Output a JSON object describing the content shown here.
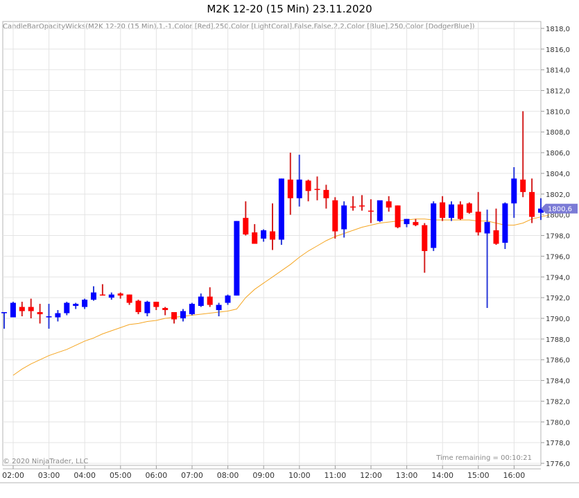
{
  "chart_data": {
    "type": "candlestick",
    "title": "M2K 12-20 (15 Min)  23.11.2020",
    "indicator_label": "CandleBarOpacityWicks(M2K 12-20 (15 Min),1,-1,Color [Red],250,Color [LightCoral],False,False,2,2,Color [Blue],250,Color [DodgerBlue])",
    "copyright": "© 2020 NinjaTrader, LLC",
    "time_remaining": "Time remaining = 00:10:21",
    "current_price_label": "1800,6",
    "x_tick_labels": [
      "02:00",
      "03:00",
      "04:00",
      "05:00",
      "06:00",
      "07:00",
      "08:00",
      "09:00",
      "10:00",
      "11:00",
      "12:00",
      "13:00",
      "14:00",
      "15:00",
      "16:00"
    ],
    "y_tick_labels": [
      "1776,0",
      "1778,0",
      "1780,0",
      "1782,0",
      "1784,0",
      "1786,0",
      "1788,0",
      "1790,0",
      "1792,0",
      "1794,0",
      "1796,0",
      "1798,0",
      "1800,0",
      "1802,0",
      "1804,0",
      "1806,0",
      "1808,0",
      "1810,0",
      "1812,0",
      "1814,0",
      "1816,0",
      "1818,0"
    ],
    "ylim": [
      1775.8,
      1818.3
    ],
    "grid": true,
    "colors": {
      "up": "#0000ff",
      "down": "#ff0000",
      "up_wick": "#1e90ff",
      "down_wick": "#f08080",
      "ma": "#f5a623",
      "price_tag": "#7b7bd6"
    },
    "candles": [
      {
        "o": 1790.6,
        "h": 1790.6,
        "l": 1789.0,
        "c": 1790.6
      },
      {
        "o": 1790.1,
        "h": 1791.6,
        "l": 1790.1,
        "c": 1791.5
      },
      {
        "o": 1791.1,
        "h": 1791.6,
        "l": 1790.2,
        "c": 1790.7
      },
      {
        "o": 1791.1,
        "h": 1791.9,
        "l": 1790.0,
        "c": 1790.7
      },
      {
        "o": 1790.6,
        "h": 1791.4,
        "l": 1789.5,
        "c": 1790.4
      },
      {
        "o": 1790.2,
        "h": 1791.4,
        "l": 1789.0,
        "c": 1790.2
      },
      {
        "o": 1790.1,
        "h": 1790.8,
        "l": 1789.7,
        "c": 1790.5
      },
      {
        "o": 1790.5,
        "h": 1791.6,
        "l": 1790.3,
        "c": 1791.5
      },
      {
        "o": 1791.2,
        "h": 1791.5,
        "l": 1790.9,
        "c": 1791.4
      },
      {
        "o": 1791.1,
        "h": 1791.9,
        "l": 1790.9,
        "c": 1791.8
      },
      {
        "o": 1791.8,
        "h": 1793.1,
        "l": 1791.7,
        "c": 1792.5
      },
      {
        "o": 1792.3,
        "h": 1793.3,
        "l": 1792.2,
        "c": 1792.2
      },
      {
        "o": 1792.0,
        "h": 1792.5,
        "l": 1791.8,
        "c": 1792.3
      },
      {
        "o": 1792.4,
        "h": 1792.5,
        "l": 1791.9,
        "c": 1792.2
      },
      {
        "o": 1792.3,
        "h": 1792.3,
        "l": 1791.3,
        "c": 1791.5
      },
      {
        "o": 1791.7,
        "h": 1791.8,
        "l": 1790.4,
        "c": 1790.6
      },
      {
        "o": 1790.5,
        "h": 1791.7,
        "l": 1790.2,
        "c": 1791.6
      },
      {
        "o": 1791.6,
        "h": 1791.6,
        "l": 1790.8,
        "c": 1791.1
      },
      {
        "o": 1791.0,
        "h": 1791.1,
        "l": 1790.3,
        "c": 1790.8
      },
      {
        "o": 1790.6,
        "h": 1790.6,
        "l": 1789.5,
        "c": 1789.9
      },
      {
        "o": 1790.0,
        "h": 1790.9,
        "l": 1789.7,
        "c": 1790.7
      },
      {
        "o": 1790.4,
        "h": 1791.5,
        "l": 1790.3,
        "c": 1791.4
      },
      {
        "o": 1791.2,
        "h": 1792.4,
        "l": 1791.1,
        "c": 1792.1
      },
      {
        "o": 1792.1,
        "h": 1793.0,
        "l": 1791.1,
        "c": 1791.3
      },
      {
        "o": 1790.8,
        "h": 1791.5,
        "l": 1790.2,
        "c": 1791.3
      },
      {
        "o": 1791.5,
        "h": 1792.3,
        "l": 1791.3,
        "c": 1792.2
      },
      {
        "o": 1792.2,
        "h": 1799.4,
        "l": 1792.2,
        "c": 1799.4
      },
      {
        "o": 1799.7,
        "h": 1801.3,
        "l": 1798.0,
        "c": 1798.1
      },
      {
        "o": 1798.3,
        "h": 1799.1,
        "l": 1797.2,
        "c": 1797.2
      },
      {
        "o": 1797.7,
        "h": 1798.6,
        "l": 1797.4,
        "c": 1798.5
      },
      {
        "o": 1798.4,
        "h": 1801.1,
        "l": 1796.6,
        "c": 1797.6
      },
      {
        "o": 1797.6,
        "h": 1803.5,
        "l": 1797.1,
        "c": 1803.5
      },
      {
        "o": 1803.4,
        "h": 1806.0,
        "l": 1800.0,
        "c": 1801.6
      },
      {
        "o": 1801.6,
        "h": 1805.8,
        "l": 1800.8,
        "c": 1803.4
      },
      {
        "o": 1803.3,
        "h": 1803.4,
        "l": 1801.3,
        "c": 1802.3
      },
      {
        "o": 1802.5,
        "h": 1803.7,
        "l": 1801.4,
        "c": 1802.4
      },
      {
        "o": 1802.4,
        "h": 1802.9,
        "l": 1800.6,
        "c": 1801.6
      },
      {
        "o": 1801.4,
        "h": 1801.7,
        "l": 1797.7,
        "c": 1798.4
      },
      {
        "o": 1798.6,
        "h": 1801.3,
        "l": 1797.8,
        "c": 1800.9
      },
      {
        "o": 1800.8,
        "h": 1801.8,
        "l": 1800.4,
        "c": 1800.7
      },
      {
        "o": 1800.9,
        "h": 1801.9,
        "l": 1800.4,
        "c": 1800.8
      },
      {
        "o": 1800.4,
        "h": 1801.5,
        "l": 1799.2,
        "c": 1800.3
      },
      {
        "o": 1799.4,
        "h": 1801.3,
        "l": 1799.3,
        "c": 1801.4
      },
      {
        "o": 1801.3,
        "h": 1801.8,
        "l": 1800.3,
        "c": 1800.7
      },
      {
        "o": 1800.9,
        "h": 1800.9,
        "l": 1798.7,
        "c": 1798.8
      },
      {
        "o": 1799.1,
        "h": 1799.6,
        "l": 1798.8,
        "c": 1799.6
      },
      {
        "o": 1799.3,
        "h": 1799.6,
        "l": 1798.9,
        "c": 1799.0
      },
      {
        "o": 1799.0,
        "h": 1799.2,
        "l": 1794.4,
        "c": 1796.5
      },
      {
        "o": 1796.8,
        "h": 1801.3,
        "l": 1796.5,
        "c": 1801.1
      },
      {
        "o": 1801.2,
        "h": 1801.8,
        "l": 1799.4,
        "c": 1799.7
      },
      {
        "o": 1799.7,
        "h": 1801.3,
        "l": 1799.4,
        "c": 1801.0
      },
      {
        "o": 1801.0,
        "h": 1801.3,
        "l": 1799.5,
        "c": 1799.6
      },
      {
        "o": 1801.1,
        "h": 1801.2,
        "l": 1800.1,
        "c": 1800.2
      },
      {
        "o": 1800.3,
        "h": 1802.2,
        "l": 1798.0,
        "c": 1798.3
      },
      {
        "o": 1798.2,
        "h": 1800.5,
        "l": 1791.0,
        "c": 1799.3
      },
      {
        "o": 1798.5,
        "h": 1800.6,
        "l": 1797.1,
        "c": 1797.2
      },
      {
        "o": 1797.3,
        "h": 1801.2,
        "l": 1796.7,
        "c": 1801.1
      },
      {
        "o": 1801.1,
        "h": 1804.6,
        "l": 1799.7,
        "c": 1803.5
      },
      {
        "o": 1803.4,
        "h": 1810.0,
        "l": 1801.7,
        "c": 1802.2
      },
      {
        "o": 1802.2,
        "h": 1803.5,
        "l": 1799.2,
        "c": 1799.8
      },
      {
        "o": 1800.2,
        "h": 1801.6,
        "l": 1799.5,
        "c": 1800.6
      }
    ],
    "moving_average": [
      1784.5,
      1785.1,
      1785.6,
      1786.0,
      1786.4,
      1786.7,
      1787.0,
      1787.4,
      1787.8,
      1788.1,
      1788.5,
      1788.8,
      1789.1,
      1789.4,
      1789.5,
      1789.7,
      1789.8,
      1790.0,
      1790.1,
      1790.2,
      1790.3,
      1790.4,
      1790.5,
      1790.6,
      1790.7,
      1790.9,
      1792.0,
      1792.8,
      1793.4,
      1794.0,
      1794.6,
      1795.2,
      1795.9,
      1796.5,
      1797.0,
      1797.5,
      1797.9,
      1798.2,
      1798.5,
      1798.8,
      1799.0,
      1799.2,
      1799.3,
      1799.4,
      1799.5,
      1799.6,
      1799.6,
      1799.5,
      1799.5,
      1799.5,
      1799.5,
      1799.5,
      1799.4,
      1799.4,
      1799.2,
      1799.0,
      1799.0,
      1799.2,
      1799.6,
      1799.8,
      1800.0
    ]
  }
}
